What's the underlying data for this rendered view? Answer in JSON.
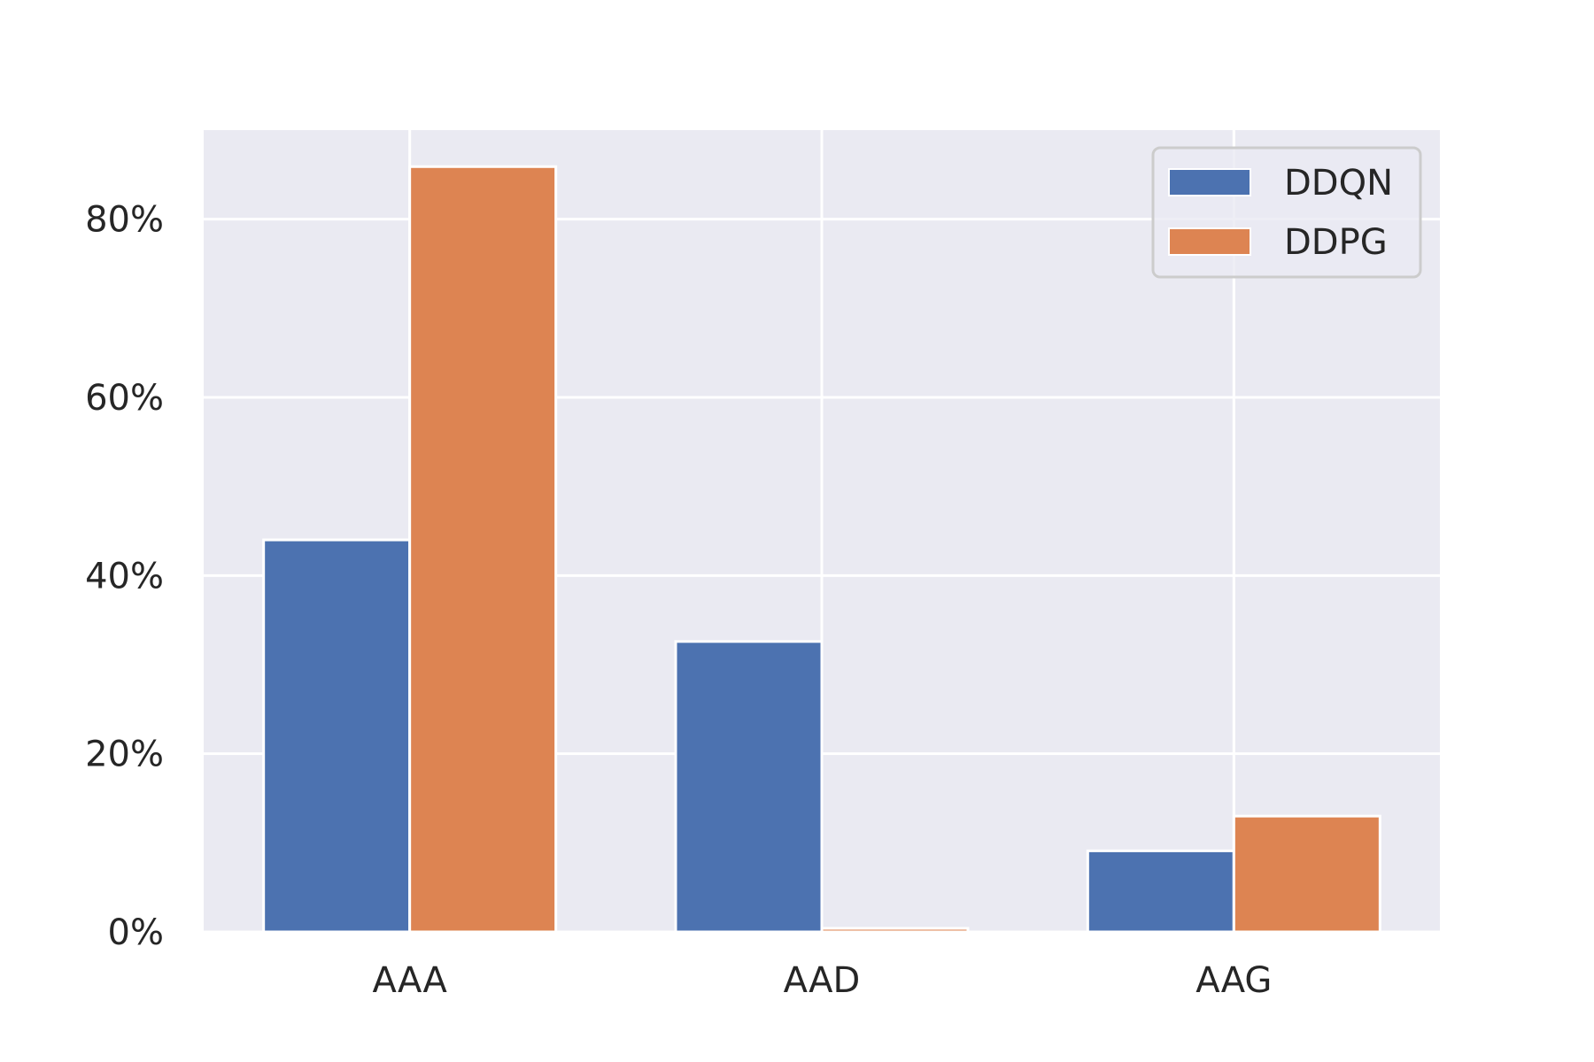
{
  "chart_data": {
    "type": "bar",
    "title": "",
    "xlabel": "",
    "ylabel": "",
    "categories": [
      "AAA",
      "AAD",
      "AAG"
    ],
    "series": [
      {
        "name": "DDQN",
        "color": "#4c72b0",
        "values": [
          44.0,
          32.6,
          9.1
        ]
      },
      {
        "name": "DDPG",
        "color": "#dd8452",
        "values": [
          85.9,
          0.4,
          13.0
        ]
      }
    ],
    "ylim": [
      0,
      90
    ],
    "yticks": [
      0,
      20,
      40,
      60,
      80
    ],
    "ytick_labels": [
      "0%",
      "20%",
      "40%",
      "60%",
      "80%"
    ],
    "grid": true,
    "legend_position": "top-right",
    "background_color": "#eaeaf2"
  }
}
